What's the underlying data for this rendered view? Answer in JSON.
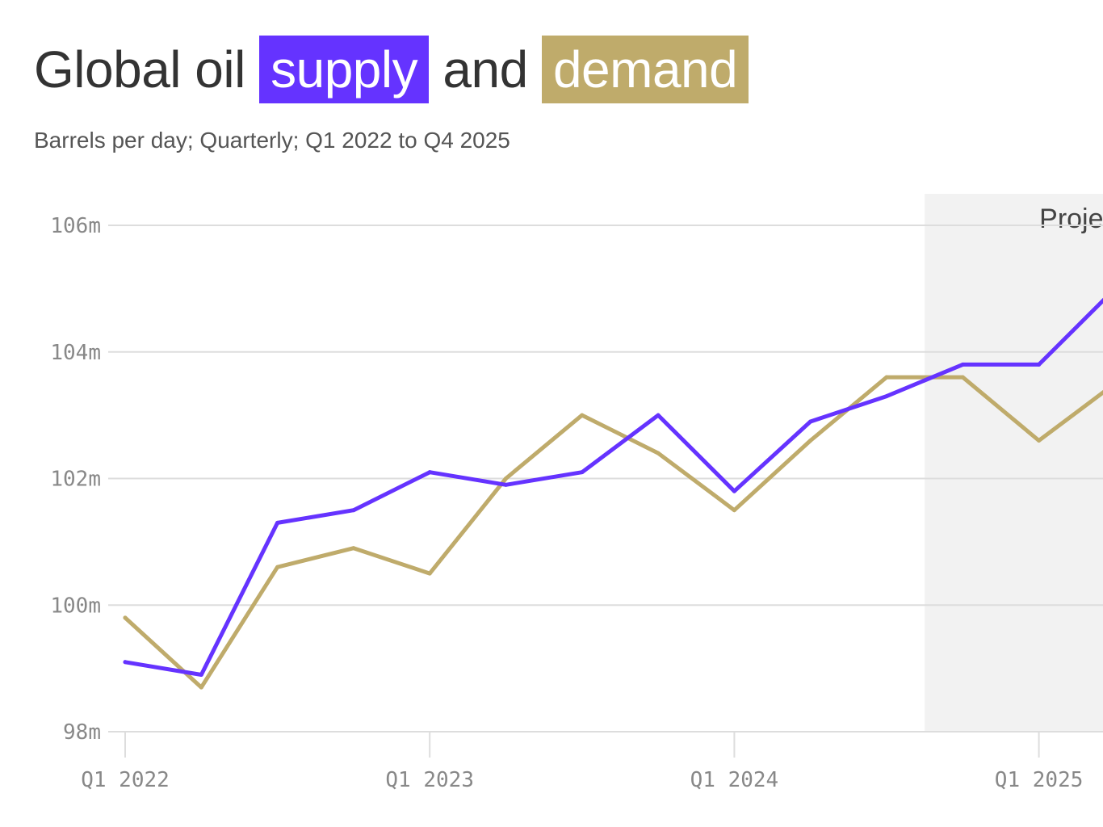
{
  "header": {
    "title_prefix": "Global oil",
    "title_supply": "supply",
    "title_and": "and",
    "title_demand": "demand",
    "subtitle": "Barrels per day; Quarterly; Q1 2022 to Q4 2025"
  },
  "colors": {
    "supply": "#6533ff",
    "demand": "#bfab6b",
    "projected_band": "#f2f2f2",
    "grid": "#dddddd"
  },
  "chart_data": {
    "type": "line",
    "title": "Global oil supply and demand",
    "subtitle": "Barrels per day; Quarterly; Q1 2022 to Q4 2025",
    "xlabel": "",
    "ylabel": "",
    "unit": "million barrels per day",
    "grid": true,
    "ylim": [
      98,
      106
    ],
    "y_ticks": [
      {
        "value": 98,
        "label": "98m"
      },
      {
        "value": 100,
        "label": "100m"
      },
      {
        "value": 102,
        "label": "102m"
      },
      {
        "value": 104,
        "label": "104m"
      },
      {
        "value": 106,
        "label": "106m"
      }
    ],
    "x": [
      "Q1 2022",
      "Q2 2022",
      "Q3 2022",
      "Q4 2022",
      "Q1 2023",
      "Q2 2023",
      "Q3 2023",
      "Q4 2023",
      "Q1 2024",
      "Q2 2024",
      "Q3 2024",
      "Q4 2024",
      "Q1 2025",
      "Q2 2025"
    ],
    "x_ticks": [
      {
        "index": 0,
        "label": "Q1 2022"
      },
      {
        "index": 4,
        "label": "Q1 2023"
      },
      {
        "index": 8,
        "label": "Q1 2024"
      },
      {
        "index": 12,
        "label": "Q1 2025"
      }
    ],
    "projected": {
      "label": "Projected",
      "from_index": 10.5
    },
    "series": [
      {
        "name": "supply",
        "color": "#6533ff",
        "values": [
          99.1,
          98.9,
          101.3,
          101.5,
          102.1,
          101.9,
          102.1,
          103.0,
          101.8,
          102.9,
          103.3,
          103.8,
          103.8,
          105.0
        ]
      },
      {
        "name": "demand",
        "color": "#bfab6b",
        "values": [
          99.8,
          98.7,
          100.6,
          100.9,
          100.5,
          102.0,
          103.0,
          102.4,
          101.5,
          102.6,
          103.6,
          103.6,
          102.6,
          103.5
        ]
      }
    ]
  }
}
